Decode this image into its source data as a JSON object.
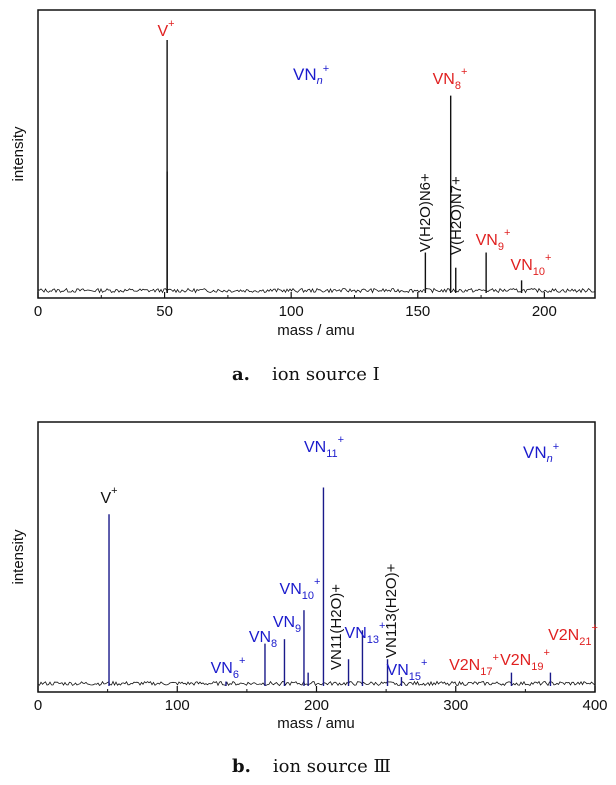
{
  "chart_data": [
    {
      "type": "line",
      "panel_letter": "a.",
      "caption": "ion source Ⅰ",
      "xlabel": "mass / amu",
      "ylabel": "intensity",
      "xlim": [
        0,
        220
      ],
      "xticks": [
        "0",
        "50",
        "100",
        "150",
        "200"
      ],
      "legend_label": "VN",
      "legend_sub": "n",
      "legend_sup": "+",
      "peaks": [
        {
          "mass": 51,
          "rel_intensity": 1.0
        },
        {
          "mass": 51,
          "rel_intensity": 0.48
        },
        {
          "mass": 153,
          "rel_intensity": 0.16
        },
        {
          "mass": 163,
          "rel_intensity": 0.78
        },
        {
          "mass": 165,
          "rel_intensity": 0.1
        },
        {
          "mass": 177,
          "rel_intensity": 0.16
        },
        {
          "mass": 191,
          "rel_intensity": 0.05
        }
      ],
      "peak_labels": [
        {
          "base": "V",
          "sub": "",
          "sup": "+",
          "color": "#e02020",
          "vertical": false,
          "mass": 51
        },
        {
          "base": "VN",
          "sub": "8",
          "sup": "+",
          "color": "#e02020",
          "vertical": false,
          "mass": 163
        },
        {
          "base": "VN",
          "sub": "9",
          "sup": "+",
          "color": "#e02020",
          "vertical": false,
          "mass": 177
        },
        {
          "base": "VN",
          "sub": "10",
          "sup": "+",
          "color": "#e02020",
          "vertical": false,
          "mass": 191
        },
        {
          "text": "V(H2O)N6+",
          "color": "#111111",
          "vertical": true,
          "mass": 153
        },
        {
          "text": "V(H2O)N7+",
          "color": "#111111",
          "vertical": true,
          "mass": 165
        }
      ]
    },
    {
      "type": "line",
      "panel_letter": "b.",
      "caption": "ion source Ⅲ",
      "xlabel": "mass / amu",
      "ylabel": "intensity",
      "xlim": [
        0,
        400
      ],
      "xticks": [
        "0",
        "100",
        "200",
        "300",
        "400"
      ],
      "legend_label": "VN",
      "legend_sub": "n",
      "legend_sup": "+",
      "peaks": [
        {
          "mass": 51,
          "rel_intensity": 0.77
        },
        {
          "mass": 135,
          "rel_intensity": 0.02
        },
        {
          "mass": 163,
          "rel_intensity": 0.19
        },
        {
          "mass": 177,
          "rel_intensity": 0.21
        },
        {
          "mass": 191,
          "rel_intensity": 0.34
        },
        {
          "mass": 194,
          "rel_intensity": 0.06
        },
        {
          "mass": 205,
          "rel_intensity": 0.89
        },
        {
          "mass": 223,
          "rel_intensity": 0.12
        },
        {
          "mass": 233,
          "rel_intensity": 0.25
        },
        {
          "mass": 251,
          "rel_intensity": 0.12
        },
        {
          "mass": 261,
          "rel_intensity": 0.04
        },
        {
          "mass": 340,
          "rel_intensity": 0.06
        },
        {
          "mass": 368,
          "rel_intensity": 0.06
        }
      ],
      "peak_labels": [
        {
          "base": "V",
          "sub": "",
          "sup": "+",
          "color": "#111111",
          "vertical": false,
          "mass": 51
        },
        {
          "base": "VN",
          "sub": "6",
          "sup": "+",
          "color": "#1a1acc",
          "vertical": false,
          "mass": 135
        },
        {
          "base": "VN",
          "sub": "8",
          "sup": "",
          "color": "#1a1acc",
          "vertical": false,
          "mass": 163
        },
        {
          "base": "VN",
          "sub": "9",
          "sup": "",
          "color": "#1a1acc",
          "vertical": false,
          "mass": 177
        },
        {
          "base": "VN",
          "sub": "10",
          "sup": "+",
          "color": "#1a1acc",
          "vertical": false,
          "mass": 191
        },
        {
          "base": "VN",
          "sub": "11",
          "sup": "+",
          "color": "#1a1acc",
          "vertical": false,
          "mass": 205
        },
        {
          "base": "VN",
          "sub": "13",
          "sup": "+",
          "color": "#1a1acc",
          "vertical": false,
          "mass": 233
        },
        {
          "base": "VN",
          "sub": "15",
          "sup": "+",
          "color": "#1a1acc",
          "vertical": false,
          "mass": 261
        },
        {
          "base": "V2N",
          "sub": "17",
          "sup": "+",
          "color": "#e02020",
          "vertical": false,
          "mass": 340
        },
        {
          "base": "V2N",
          "sub": "19",
          "sup": "+",
          "color": "#e02020",
          "vertical": false,
          "mass": 368
        },
        {
          "base": "V2N",
          "sub": "21",
          "sup": "+",
          "color": "#e02020",
          "vertical": false,
          "mass": 395
        },
        {
          "text": "VN11(H2O)+",
          "color": "#111111",
          "vertical": true,
          "mass": 223
        },
        {
          "text": "VN113(H2O)+",
          "color": "#111111",
          "vertical": true,
          "mass": 251
        }
      ]
    }
  ]
}
